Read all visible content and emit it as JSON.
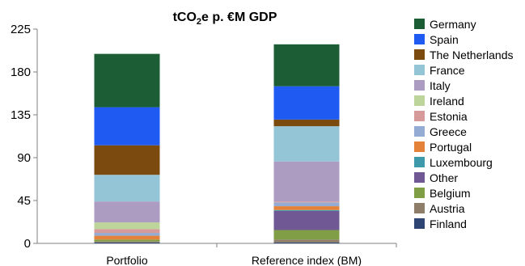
{
  "chart_data": {
    "type": "bar",
    "stacked": true,
    "title_main": "tCO",
    "title_sub": "2",
    "title_rest": "e p. €M GDP",
    "categories": [
      "Portfolio",
      "Reference index (BM)"
    ],
    "ylim": [
      0,
      225
    ],
    "yticks": [
      "0",
      "45",
      "90",
      "135",
      "180",
      "225"
    ],
    "ytick_values": [
      0,
      45,
      90,
      135,
      180,
      225
    ],
    "legend_position": "right",
    "series": [
      {
        "name": "Finland",
        "color": "#2E4472",
        "values": [
          1,
          1
        ]
      },
      {
        "name": "Austria",
        "color": "#8E7E69",
        "values": [
          1,
          3
        ]
      },
      {
        "name": "Belgium",
        "color": "#7F9E45",
        "values": [
          2,
          10
        ]
      },
      {
        "name": "Other",
        "color": "#6F5893",
        "values": [
          0,
          20
        ]
      },
      {
        "name": "Luxembourg",
        "color": "#3E9AAA",
        "values": [
          0,
          1
        ]
      },
      {
        "name": "Portugal",
        "color": "#E5823A",
        "values": [
          4,
          4
        ]
      },
      {
        "name": "Greece",
        "color": "#94ABD3",
        "values": [
          3,
          4
        ]
      },
      {
        "name": "Estonia",
        "color": "#D69A9A",
        "values": [
          4,
          1
        ]
      },
      {
        "name": "Ireland",
        "color": "#BDD59B",
        "values": [
          7,
          0
        ]
      },
      {
        "name": "Italy",
        "color": "#AC9CC2",
        "values": [
          22,
          42
        ]
      },
      {
        "name": "France",
        "color": "#93C5D6",
        "values": [
          28,
          37
        ]
      },
      {
        "name": "The Netherlands",
        "color": "#7B4A0F",
        "values": [
          31,
          7
        ]
      },
      {
        "name": "Spain",
        "color": "#1F5BF2",
        "values": [
          40,
          35
        ]
      },
      {
        "name": "Germany",
        "color": "#1C5D35",
        "values": [
          56,
          44
        ]
      }
    ]
  }
}
